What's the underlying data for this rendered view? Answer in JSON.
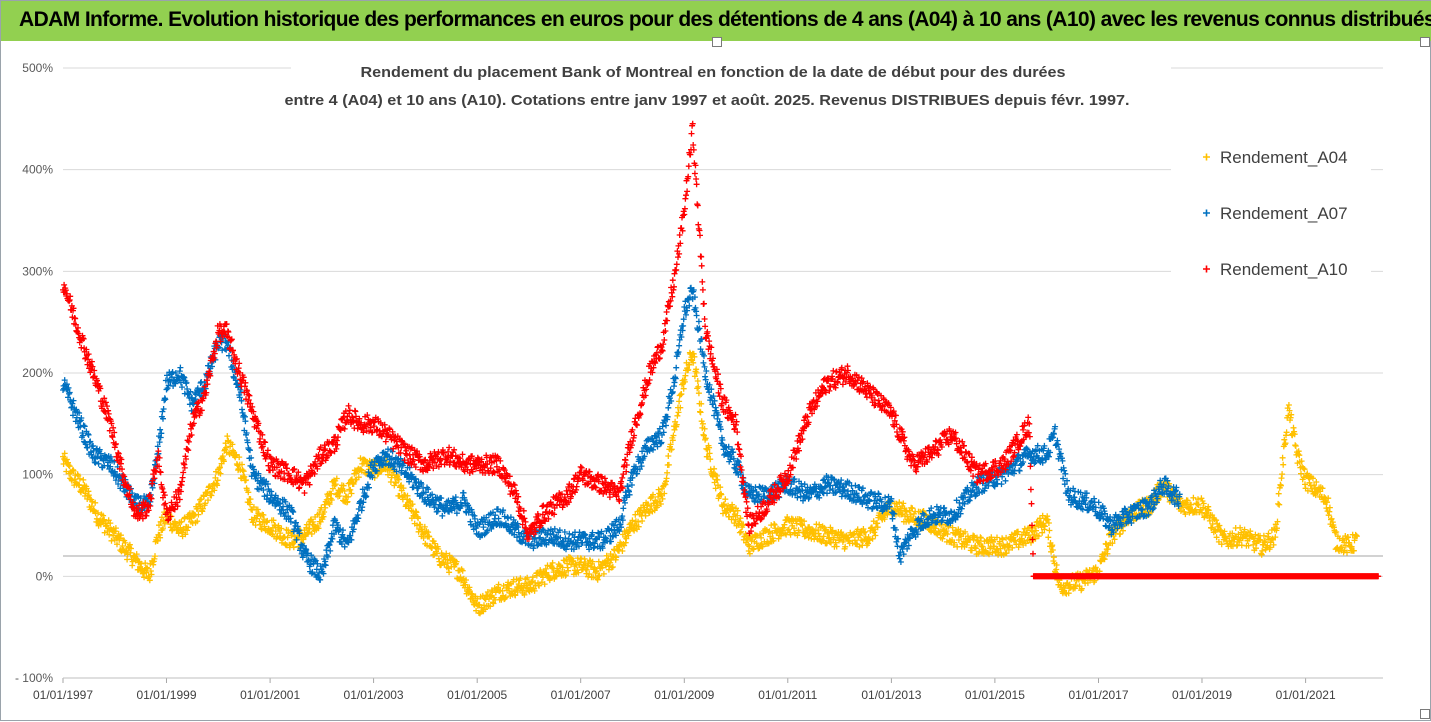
{
  "banner": {
    "title": "ADAM Informe. Evolution historique des performances en euros pour des détentions de 4 ans (A04) à 10 ans (A10) avec les revenus connus distribués"
  },
  "colors": {
    "banner_bg": "#92d050",
    "A04": "#ffc000",
    "A07": "#0070c0",
    "A10": "#ff0000"
  },
  "chart_data": {
    "type": "scatter",
    "title_lines": [
      "Rendement du placement Bank of Montreal en fonction de la date de début pour des durées",
      "entre 4 (A04) et 10 ans (A10). Cotations entre janv 1997 et août. 2025. Revenus DISTRIBUES depuis févr. 1997."
    ],
    "x_axis": {
      "type": "date",
      "min": "1997-01-01",
      "max": "2022-07-01",
      "tick_labels": [
        "01/01/1997",
        "01/01/1999",
        "01/01/2001",
        "01/01/2003",
        "01/01/2005",
        "01/01/2007",
        "01/01/2009",
        "01/01/2011",
        "01/01/2013",
        "01/01/2015",
        "01/01/2017",
        "01/01/2019",
        "01/01/2021"
      ]
    },
    "y_axis": {
      "min": -100,
      "max": 500,
      "unit": "%",
      "tick_values": [
        -100,
        0,
        100,
        200,
        300,
        400,
        500
      ],
      "tick_labels": [
        "- 100%",
        "0%",
        "100%",
        "200%",
        "300%",
        "400%",
        "500%"
      ]
    },
    "reference_line": 20,
    "grid": "horizontal",
    "legend_position": "right",
    "legend": [
      "Rendement_A04",
      "Rendement_A07",
      "Rendement_A10"
    ],
    "marker": "+",
    "series": [
      {
        "name": "Rendement_A04",
        "color": "#ffc000",
        "points": [
          [
            "1997-01-01",
            115
          ],
          [
            "1997-03-01",
            100
          ],
          [
            "1997-06-01",
            85
          ],
          [
            "1997-09-01",
            60
          ],
          [
            "1997-12-01",
            45
          ],
          [
            "1998-03-01",
            30
          ],
          [
            "1998-06-01",
            15
          ],
          [
            "1998-09-01",
            0
          ],
          [
            "1998-11-01",
            40
          ],
          [
            "1999-01-01",
            60
          ],
          [
            "1999-04-01",
            45
          ],
          [
            "1999-07-01",
            55
          ],
          [
            "1999-10-01",
            75
          ],
          [
            "2000-01-01",
            100
          ],
          [
            "2000-03-01",
            130
          ],
          [
            "2000-06-01",
            110
          ],
          [
            "2000-09-01",
            60
          ],
          [
            "2001-01-01",
            50
          ],
          [
            "2001-06-01",
            35
          ],
          [
            "2001-09-01",
            40
          ],
          [
            "2002-01-01",
            60
          ],
          [
            "2002-04-01",
            90
          ],
          [
            "2002-07-01",
            80
          ],
          [
            "2002-10-01",
            110
          ],
          [
            "2003-01-01",
            105
          ],
          [
            "2003-04-01",
            110
          ],
          [
            "2003-09-01",
            70
          ],
          [
            "2004-01-01",
            40
          ],
          [
            "2004-04-01",
            20
          ],
          [
            "2004-09-01",
            5
          ],
          [
            "2005-01-01",
            -30
          ],
          [
            "2005-06-01",
            -15
          ],
          [
            "2005-10-01",
            -10
          ],
          [
            "2006-01-01",
            -10
          ],
          [
            "2006-06-01",
            5
          ],
          [
            "2006-10-01",
            10
          ],
          [
            "2007-01-01",
            10
          ],
          [
            "2007-05-01",
            5
          ],
          [
            "2007-09-01",
            20
          ],
          [
            "2008-01-01",
            50
          ],
          [
            "2008-05-01",
            70
          ],
          [
            "2008-08-01",
            80
          ],
          [
            "2008-11-01",
            150
          ],
          [
            "2009-01-01",
            195
          ],
          [
            "2009-03-01",
            220
          ],
          [
            "2009-06-01",
            130
          ],
          [
            "2009-10-01",
            70
          ],
          [
            "2010-01-01",
            60
          ],
          [
            "2010-04-01",
            30
          ],
          [
            "2010-08-01",
            40
          ],
          [
            "2011-01-01",
            50
          ],
          [
            "2011-06-01",
            45
          ],
          [
            "2011-10-01",
            40
          ],
          [
            "2012-03-01",
            35
          ],
          [
            "2012-08-01",
            40
          ],
          [
            "2013-01-01",
            70
          ],
          [
            "2013-05-01",
            60
          ],
          [
            "2013-09-01",
            55
          ],
          [
            "2014-03-01",
            40
          ],
          [
            "2014-09-01",
            30
          ],
          [
            "2015-03-01",
            30
          ],
          [
            "2015-09-01",
            40
          ],
          [
            "2016-01-01",
            55
          ],
          [
            "2016-04-01",
            -10
          ],
          [
            "2016-09-01",
            -5
          ],
          [
            "2017-01-01",
            5
          ],
          [
            "2017-04-01",
            40
          ],
          [
            "2017-08-01",
            60
          ],
          [
            "2018-01-01",
            70
          ],
          [
            "2018-04-01",
            90
          ],
          [
            "2018-08-01",
            70
          ],
          [
            "2019-01-01",
            70
          ],
          [
            "2019-06-01",
            35
          ],
          [
            "2019-10-01",
            40
          ],
          [
            "2020-03-01",
            30
          ],
          [
            "2020-06-01",
            40
          ],
          [
            "2020-09-01",
            165
          ],
          [
            "2020-11-01",
            120
          ],
          [
            "2021-01-01",
            95
          ],
          [
            "2021-06-01",
            75
          ],
          [
            "2021-08-01",
            35
          ],
          [
            "2021-11-01",
            30
          ],
          [
            "2022-01-01",
            35
          ]
        ]
      },
      {
        "name": "Rendement_A07",
        "color": "#0070c0",
        "points": [
          [
            "1997-01-01",
            190
          ],
          [
            "1997-04-01",
            160
          ],
          [
            "1997-08-01",
            120
          ],
          [
            "1997-12-01",
            110
          ],
          [
            "1998-03-01",
            90
          ],
          [
            "1998-06-01",
            70
          ],
          [
            "1998-09-01",
            70
          ],
          [
            "1998-11-01",
            120
          ],
          [
            "1999-01-01",
            190
          ],
          [
            "1999-04-01",
            200
          ],
          [
            "1999-07-01",
            170
          ],
          [
            "1999-10-01",
            190
          ],
          [
            "2000-01-01",
            230
          ],
          [
            "2000-03-01",
            230
          ],
          [
            "2000-06-01",
            180
          ],
          [
            "2000-09-01",
            100
          ],
          [
            "2001-01-01",
            80
          ],
          [
            "2001-06-01",
            60
          ],
          [
            "2001-09-01",
            20
          ],
          [
            "2002-01-01",
            0
          ],
          [
            "2002-04-01",
            50
          ],
          [
            "2002-07-01",
            30
          ],
          [
            "2002-10-01",
            70
          ],
          [
            "2003-01-01",
            110
          ],
          [
            "2003-04-01",
            120
          ],
          [
            "2003-09-01",
            100
          ],
          [
            "2004-01-01",
            80
          ],
          [
            "2004-06-01",
            65
          ],
          [
            "2004-10-01",
            75
          ],
          [
            "2005-01-01",
            45
          ],
          [
            "2005-06-01",
            60
          ],
          [
            "2005-10-01",
            45
          ],
          [
            "2006-01-01",
            35
          ],
          [
            "2006-06-01",
            40
          ],
          [
            "2006-10-01",
            35
          ],
          [
            "2007-01-01",
            35
          ],
          [
            "2007-06-01",
            35
          ],
          [
            "2007-10-01",
            50
          ],
          [
            "2008-01-01",
            100
          ],
          [
            "2008-05-01",
            130
          ],
          [
            "2008-08-01",
            140
          ],
          [
            "2008-11-01",
            200
          ],
          [
            "2009-01-01",
            260
          ],
          [
            "2009-03-01",
            280
          ],
          [
            "2009-06-01",
            200
          ],
          [
            "2009-10-01",
            130
          ],
          [
            "2010-01-01",
            110
          ],
          [
            "2010-04-01",
            80
          ],
          [
            "2010-08-01",
            80
          ],
          [
            "2011-01-01",
            90
          ],
          [
            "2011-06-01",
            80
          ],
          [
            "2011-10-01",
            90
          ],
          [
            "2012-03-01",
            85
          ],
          [
            "2012-08-01",
            75
          ],
          [
            "2013-01-01",
            70
          ],
          [
            "2013-03-01",
            20
          ],
          [
            "2013-06-01",
            45
          ],
          [
            "2013-10-01",
            60
          ],
          [
            "2014-03-01",
            60
          ],
          [
            "2014-09-01",
            90
          ],
          [
            "2015-03-01",
            100
          ],
          [
            "2015-09-01",
            120
          ],
          [
            "2016-01-01",
            120
          ],
          [
            "2016-03-01",
            140
          ],
          [
            "2016-06-01",
            80
          ],
          [
            "2016-12-01",
            70
          ],
          [
            "2017-04-01",
            50
          ],
          [
            "2017-08-01",
            60
          ],
          [
            "2018-01-01",
            70
          ],
          [
            "2018-04-01",
            90
          ],
          [
            "2018-08-01",
            75
          ]
        ]
      },
      {
        "name": "Rendement_A10",
        "color": "#ff0000",
        "points": [
          [
            "1997-01-01",
            290
          ],
          [
            "1997-04-01",
            250
          ],
          [
            "1997-08-01",
            200
          ],
          [
            "1997-12-01",
            150
          ],
          [
            "1998-03-01",
            100
          ],
          [
            "1998-06-01",
            60
          ],
          [
            "1998-09-01",
            70
          ],
          [
            "1998-11-01",
            120
          ],
          [
            "1999-01-01",
            60
          ],
          [
            "1999-04-01",
            80
          ],
          [
            "1999-07-01",
            150
          ],
          [
            "1999-10-01",
            180
          ],
          [
            "2000-01-01",
            240
          ],
          [
            "2000-03-01",
            240
          ],
          [
            "2000-06-01",
            200
          ],
          [
            "2000-09-01",
            160
          ],
          [
            "2001-01-01",
            110
          ],
          [
            "2001-06-01",
            100
          ],
          [
            "2001-09-01",
            90
          ],
          [
            "2002-01-01",
            120
          ],
          [
            "2002-04-01",
            130
          ],
          [
            "2002-07-01",
            160
          ],
          [
            "2002-10-01",
            150
          ],
          [
            "2003-01-01",
            150
          ],
          [
            "2003-04-01",
            140
          ],
          [
            "2003-09-01",
            120
          ],
          [
            "2004-01-01",
            110
          ],
          [
            "2004-06-01",
            120
          ],
          [
            "2004-10-01",
            110
          ],
          [
            "2005-01-01",
            110
          ],
          [
            "2005-06-01",
            110
          ],
          [
            "2005-10-01",
            80
          ],
          [
            "2006-01-01",
            40
          ],
          [
            "2006-04-01",
            60
          ],
          [
            "2006-10-01",
            80
          ],
          [
            "2007-01-01",
            100
          ],
          [
            "2007-06-01",
            90
          ],
          [
            "2007-10-01",
            80
          ],
          [
            "2008-01-01",
            140
          ],
          [
            "2008-05-01",
            200
          ],
          [
            "2008-08-01",
            230
          ],
          [
            "2008-11-01",
            300
          ],
          [
            "2009-01-01",
            360
          ],
          [
            "2009-03-01",
            440
          ],
          [
            "2009-06-01",
            240
          ],
          [
            "2009-10-01",
            170
          ],
          [
            "2010-01-01",
            150
          ],
          [
            "2010-04-01",
            50
          ],
          [
            "2010-08-01",
            70
          ],
          [
            "2011-01-01",
            100
          ],
          [
            "2011-06-01",
            160
          ],
          [
            "2011-10-01",
            190
          ],
          [
            "2012-03-01",
            200
          ],
          [
            "2012-08-01",
            180
          ],
          [
            "2013-01-01",
            160
          ],
          [
            "2013-06-01",
            110
          ],
          [
            "2013-10-01",
            120
          ],
          [
            "2014-03-01",
            140
          ],
          [
            "2014-09-01",
            100
          ],
          [
            "2015-03-01",
            110
          ],
          [
            "2015-09-01",
            150
          ],
          [
            "2015-10-01",
            0
          ],
          [
            "2016-06-01",
            0
          ],
          [
            "2017-06-01",
            0
          ],
          [
            "2018-06-01",
            0
          ],
          [
            "2019-06-01",
            0
          ],
          [
            "2020-06-01",
            0
          ],
          [
            "2021-06-01",
            0
          ],
          [
            "2022-06-01",
            0
          ]
        ]
      }
    ]
  }
}
